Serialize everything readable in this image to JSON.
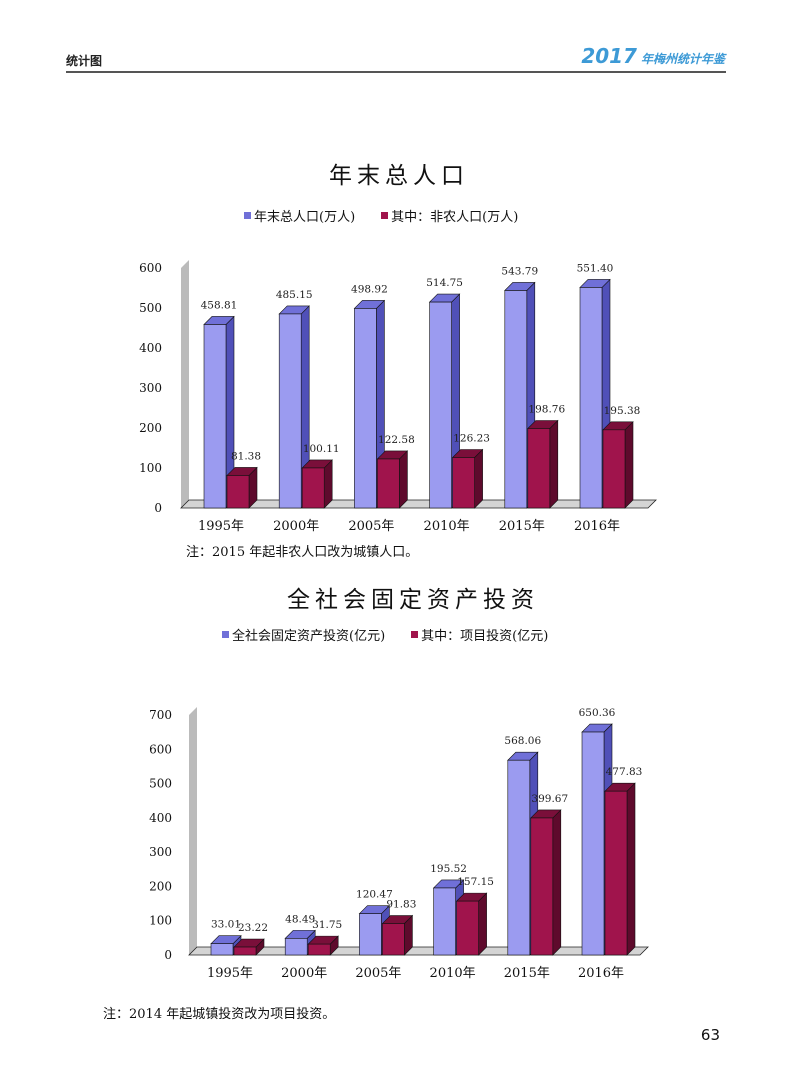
{
  "header": {
    "section": "统计图",
    "year": "2017",
    "book": "年梅州统计年鉴"
  },
  "colors": {
    "series1": "#9b9bf0",
    "series1_side": "#5050b8",
    "series1_top": "#7070d8",
    "series2": "#a0144c",
    "series2_side": "#5e0a2c",
    "series2_top": "#7a0f3a",
    "wall": "#bbbbbb"
  },
  "chart_data": [
    {
      "type": "bar",
      "title": "年末总人口",
      "categories": [
        "1995年",
        "2000年",
        "2005年",
        "2010年",
        "2015年",
        "2016年"
      ],
      "series": [
        {
          "name": "年末总人口(万人)",
          "values": [
            458.81,
            485.15,
            498.92,
            514.75,
            543.79,
            551.4
          ],
          "labels": [
            "458.81",
            "485.15",
            "498.92",
            "514.75",
            "543.79",
            "551.40"
          ]
        },
        {
          "name": "其中：非农人口(万人)",
          "values": [
            81.38,
            100.11,
            122.58,
            126.23,
            198.76,
            195.38
          ],
          "labels": [
            "81.38",
            "100.11",
            "122.58",
            "126.23",
            "198.76",
            "195.38"
          ]
        }
      ],
      "yticks": [
        0,
        100,
        200,
        300,
        400,
        500,
        600
      ],
      "ylim": [
        0,
        600
      ],
      "note": "注：2015 年起非农人口改为城镇人口。"
    },
    {
      "type": "bar",
      "title": "全社会固定资产投资",
      "categories": [
        "1995年",
        "2000年",
        "2005年",
        "2010年",
        "2015年",
        "2016年"
      ],
      "series": [
        {
          "name": "全社会固定资产投资(亿元)",
          "values": [
            33.01,
            48.49,
            120.47,
            195.52,
            568.06,
            650.36
          ],
          "labels": [
            "33.01",
            "48.49",
            "120.47",
            "195.52",
            "568.06",
            "650.36"
          ]
        },
        {
          "name": "其中：项目投资(亿元)",
          "values": [
            23.22,
            31.75,
            91.83,
            157.15,
            399.67,
            477.83
          ],
          "labels": [
            "23.22",
            "31.75",
            "91.83",
            "157.15",
            "399.67",
            "477.83"
          ]
        }
      ],
      "yticks": [
        0,
        100,
        200,
        300,
        400,
        500,
        600,
        700
      ],
      "ylim": [
        0,
        700
      ],
      "note": "注：2014 年起城镇投资改为项目投资。"
    }
  ],
  "page_number": "63"
}
